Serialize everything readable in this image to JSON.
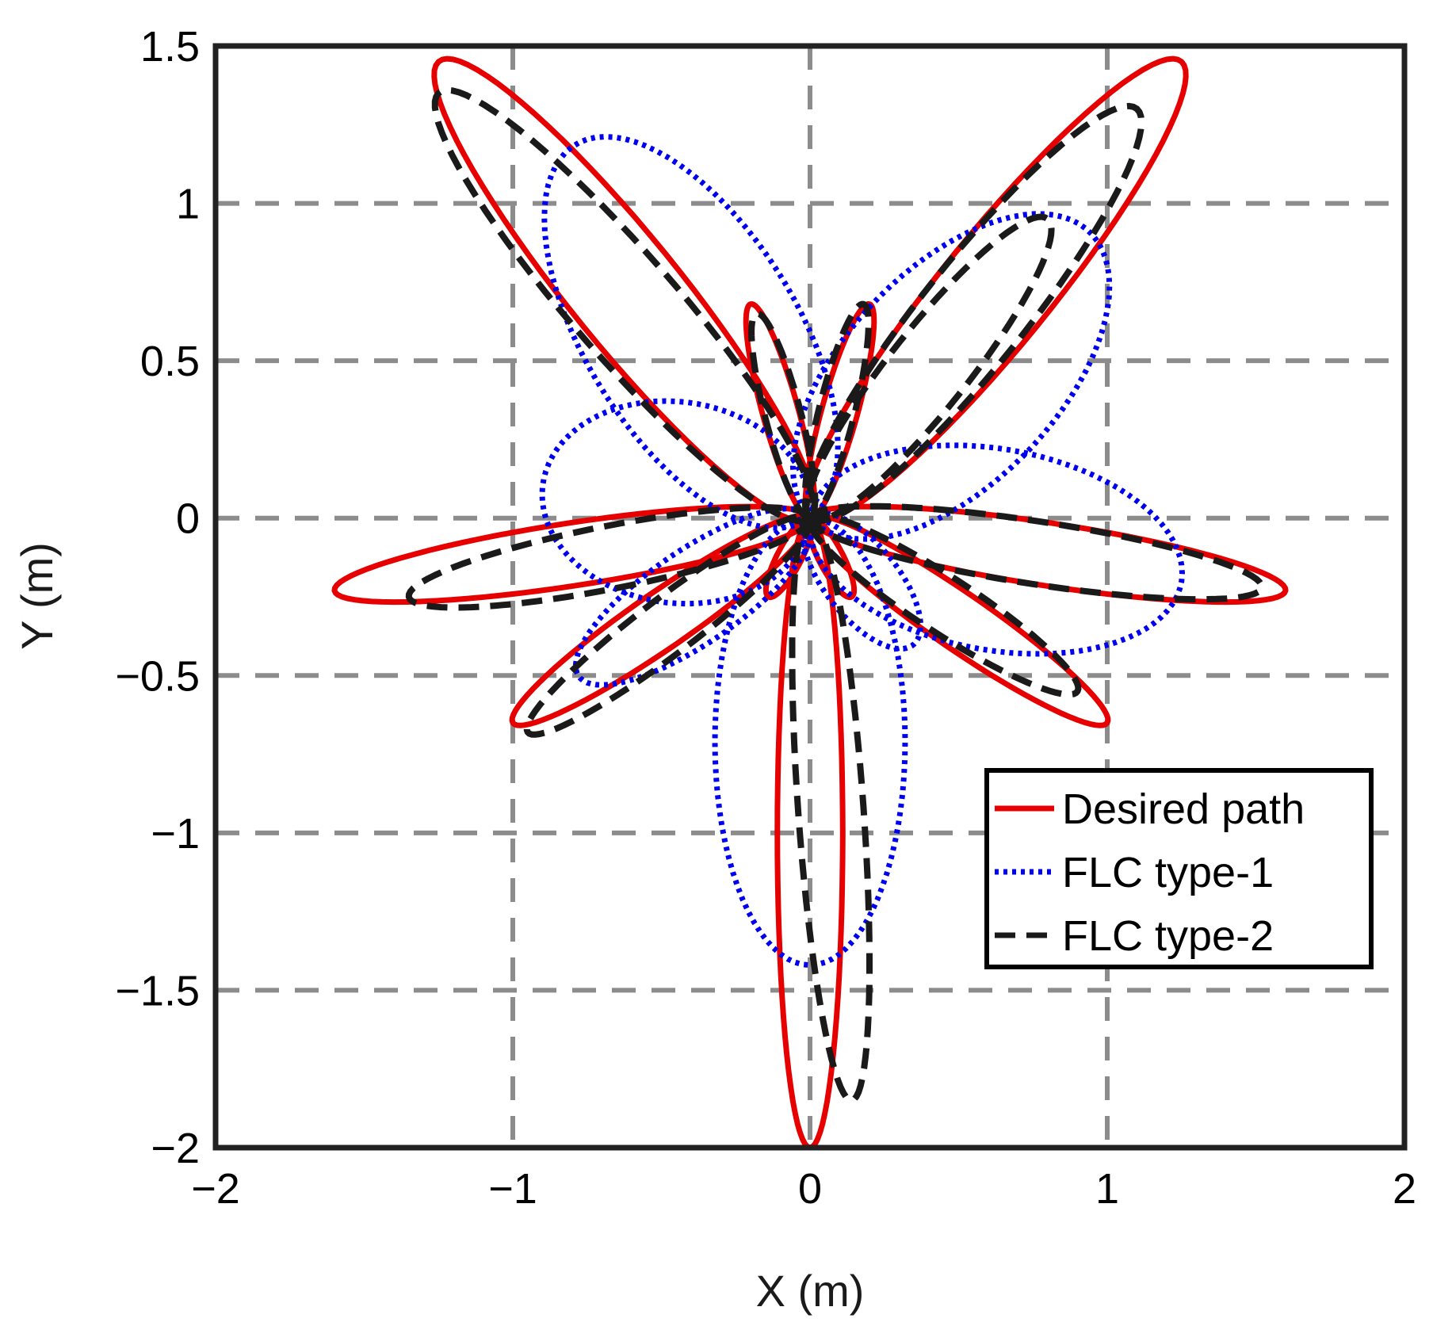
{
  "chart_data": {
    "type": "line",
    "xlabel": "X (m)",
    "ylabel": "Y (m)",
    "xlim": [
      -2,
      2
    ],
    "ylim": [
      -2,
      1.5
    ],
    "grid": true,
    "legend_position": "lower-right",
    "x_ticks": [
      {
        "value": -2,
        "label": "−2"
      },
      {
        "value": -1,
        "label": "−1"
      },
      {
        "value": 0,
        "label": "0"
      },
      {
        "value": 1,
        "label": "1"
      },
      {
        "value": 2,
        "label": "2"
      }
    ],
    "y_ticks": [
      {
        "value": 1.5,
        "label": "1.5"
      },
      {
        "value": 1,
        "label": "1"
      },
      {
        "value": 0.5,
        "label": "0.5"
      },
      {
        "value": 0,
        "label": "0"
      },
      {
        "value": -0.5,
        "label": "−0.5"
      },
      {
        "value": -1,
        "label": "−1"
      },
      {
        "value": -1.5,
        "label": "−1.5"
      },
      {
        "value": -2,
        "label": "−2"
      }
    ],
    "series": [
      {
        "name": "Desired path",
        "color": "#e60000",
        "style": "solid",
        "petals": [
          {
            "tip": [
              1.25,
              1.45
            ],
            "width": 0.18
          },
          {
            "tip": [
              -1.25,
              1.45
            ],
            "width": 0.18
          },
          {
            "tip": [
              1.6,
              -0.23
            ],
            "width": 0.1
          },
          {
            "tip": [
              -1.6,
              -0.23
            ],
            "width": 0.1
          },
          {
            "tip": [
              1.0,
              -0.65
            ],
            "width": 0.09
          },
          {
            "tip": [
              -1.0,
              -0.65
            ],
            "width": 0.09
          },
          {
            "tip": [
              0.0,
              -2.0
            ],
            "width": 0.11
          },
          {
            "tip": [
              0.2,
              0.68
            ],
            "width": 0.06
          },
          {
            "tip": [
              -0.2,
              0.68
            ],
            "width": 0.06
          },
          {
            "tip": [
              0.14,
              -0.25
            ],
            "width": 0.04
          },
          {
            "tip": [
              -0.14,
              -0.25
            ],
            "width": 0.04
          }
        ]
      },
      {
        "name": "FLC type-1",
        "color": "#0000ee",
        "style": "dotted",
        "petals": [
          {
            "tip": [
              -0.8,
              1.18
            ],
            "width": 0.35
          },
          {
            "tip": [
              0.95,
              0.9
            ],
            "width": 0.35
          },
          {
            "tip": [
              1.25,
              -0.2
            ],
            "width": 0.32
          },
          {
            "tip": [
              -0.9,
              0.1
            ],
            "width": 0.32
          },
          {
            "tip": [
              0.0,
              -1.42
            ],
            "width": 0.32
          },
          {
            "tip": [
              -0.78,
              -0.5
            ],
            "width": 0.15
          },
          {
            "tip": [
              0.35,
              -0.4
            ],
            "width": 0.12
          }
        ]
      },
      {
        "name": "FLC type-2",
        "color": "#1a1a1a",
        "style": "dashed",
        "petals": [
          {
            "tip": [
              -1.25,
              1.35
            ],
            "width": 0.17
          },
          {
            "tip": [
              1.1,
              1.3
            ],
            "width": 0.17
          },
          {
            "tip": [
              0.8,
              0.95
            ],
            "width": 0.13
          },
          {
            "tip": [
              1.52,
              -0.22
            ],
            "width": 0.1
          },
          {
            "tip": [
              -1.35,
              -0.25
            ],
            "width": 0.1
          },
          {
            "tip": [
              -0.95,
              -0.68
            ],
            "width": 0.09
          },
          {
            "tip": [
              0.9,
              -0.55
            ],
            "width": 0.09
          },
          {
            "tip": [
              0.14,
              -1.85
            ],
            "width": 0.11
          },
          {
            "tip": [
              0.18,
              0.68
            ],
            "width": 0.06
          },
          {
            "tip": [
              -0.18,
              0.65
            ],
            "width": 0.06
          }
        ]
      }
    ]
  }
}
